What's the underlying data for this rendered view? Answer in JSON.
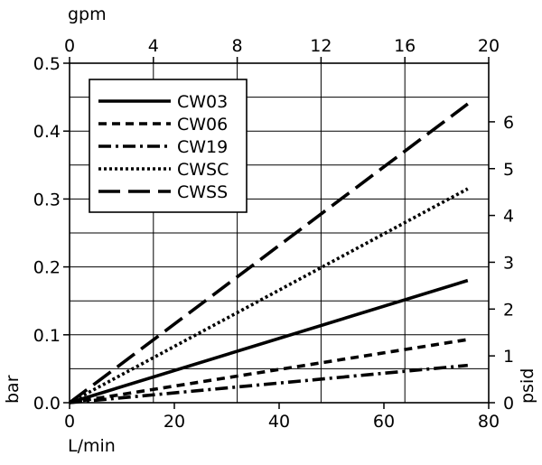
{
  "chart_data": {
    "type": "line",
    "x_axis_bottom": {
      "label": "L/min",
      "range": [
        0,
        80
      ],
      "ticks": [
        0,
        20,
        40,
        60,
        80
      ]
    },
    "x_axis_top": {
      "label": "gpm",
      "range": [
        0,
        20
      ],
      "ticks": [
        0,
        4,
        8,
        12,
        16,
        20
      ]
    },
    "y_axis_left": {
      "label": "bar",
      "range": [
        0,
        0.5
      ],
      "ticks": [
        0.0,
        0.1,
        0.2,
        0.3,
        0.4,
        0.5
      ],
      "tick_labels": [
        "0.0",
        "0.1",
        "0.2",
        "0.3",
        "0.4",
        "0.5"
      ]
    },
    "y_axis_right": {
      "label": "psid",
      "range": [
        0,
        7.2519
      ],
      "ticks": [
        0,
        1,
        2,
        3,
        4,
        5,
        6
      ]
    },
    "grid": true,
    "legend_position": "top-left",
    "series": [
      {
        "name": "CW03",
        "style": "solid",
        "x": [
          0,
          76
        ],
        "y": [
          0.0,
          0.18
        ]
      },
      {
        "name": "CW06",
        "style": "dashed",
        "x": [
          0,
          76
        ],
        "y": [
          0.0,
          0.093
        ]
      },
      {
        "name": "CW19",
        "style": "dash-dot",
        "x": [
          0,
          76
        ],
        "y": [
          0.0,
          0.055
        ]
      },
      {
        "name": "CWSC",
        "style": "dotted",
        "x": [
          0,
          76
        ],
        "y": [
          0.0,
          0.315
        ]
      },
      {
        "name": "CWSS",
        "style": "long-dash",
        "x": [
          0,
          76
        ],
        "y": [
          0.0,
          0.44
        ]
      }
    ]
  }
}
